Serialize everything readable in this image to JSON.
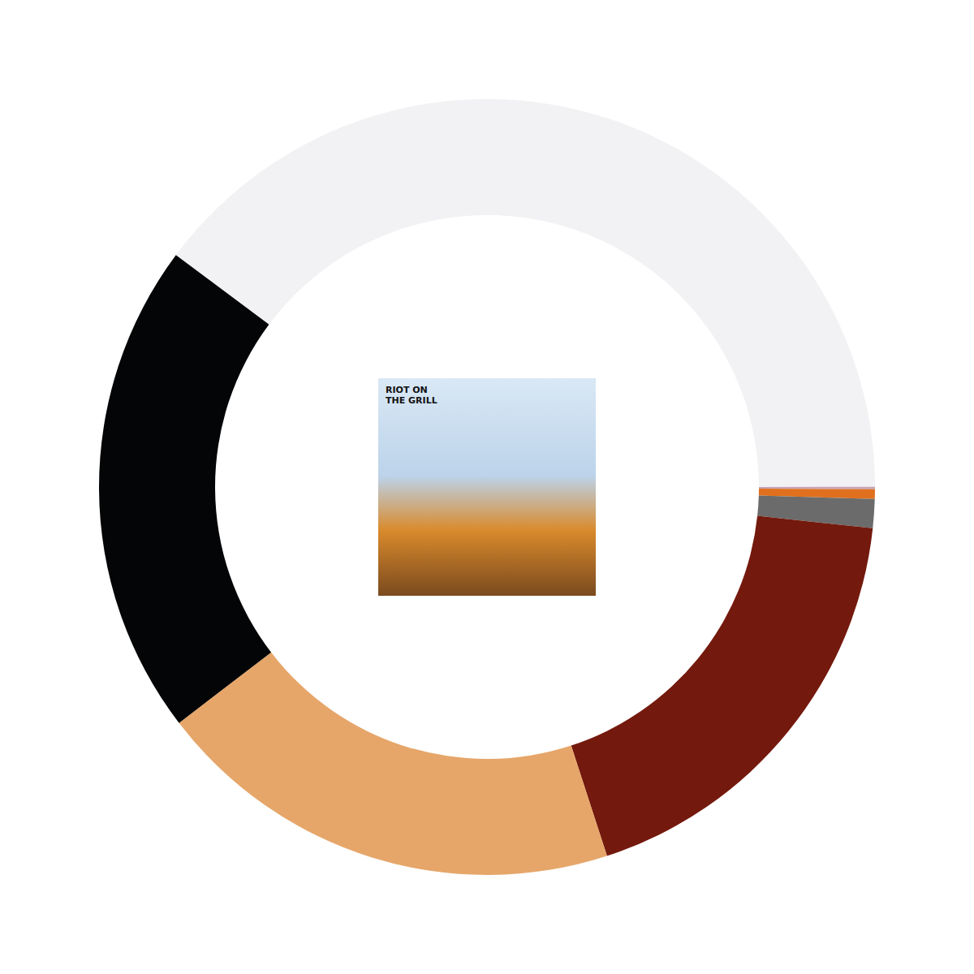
{
  "chart_data": {
    "type": "pie",
    "values": [
      39.8,
      0.1,
      0.4,
      1.2,
      18.3,
      19.6,
      20.6
    ],
    "colors": [
      "#f2f1f3",
      "#c9a3b5",
      "#e0701e",
      "#6b6b6b",
      "#74190d",
      "#e6a66a",
      "#040506"
    ],
    "annotations": [
      "RIOT ON\nTHE GRILL"
    ],
    "data_labels": false,
    "legend": false
  }
}
